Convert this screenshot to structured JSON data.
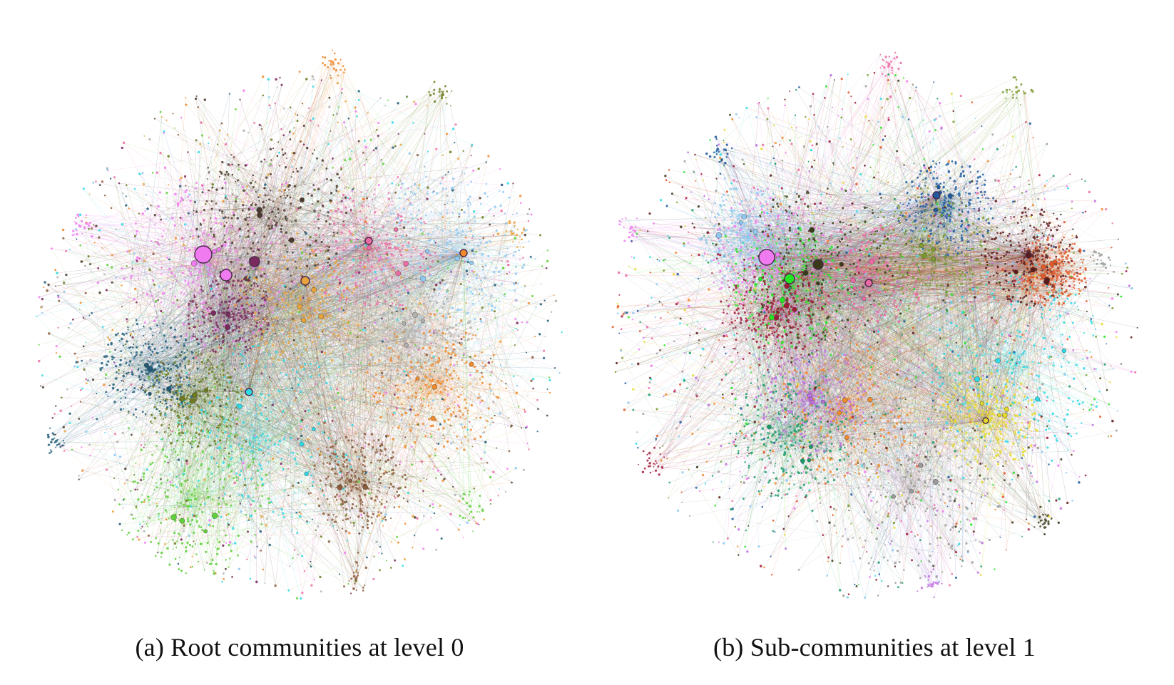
{
  "figure": {
    "panels": [
      {
        "id": "a",
        "caption": "(a) Root communities at level 0",
        "community_colors": [
          "#f07af0",
          "#ea6aa4",
          "#e8a33c",
          "#f08a2c",
          "#2fd9e6",
          "#5fcf3a",
          "#6d7a1e",
          "#7a2a5e",
          "#4b3a2e",
          "#1f5a78",
          "#8fc9f0",
          "#b0b0b0",
          "#8a5a3a"
        ],
        "hubs": [
          {
            "color": "#f07af0",
            "weight": 1.0
          },
          {
            "color": "#f07af0",
            "weight": 0.55
          },
          {
            "color": "#7a2a5e",
            "weight": 0.45
          },
          {
            "color": "#e8a33c",
            "weight": 0.35
          },
          {
            "color": "#ea6aa4",
            "weight": 0.3
          },
          {
            "color": "#f08a2c",
            "weight": 0.3
          },
          {
            "color": "#2fd9e6",
            "weight": 0.3
          }
        ]
      },
      {
        "id": "b",
        "caption": "(b) Sub-communities at level 1",
        "community_colors": [
          "#f07af0",
          "#22e622",
          "#3a3a1a",
          "#ea6aa4",
          "#2fd9e6",
          "#1f5a9e",
          "#7a9a2e",
          "#e6d82a",
          "#f08a2c",
          "#a01a3a",
          "#1a9a6a",
          "#5a1a1a",
          "#c070e0",
          "#8fc9f0",
          "#e05a2a",
          "#9a9a9a"
        ],
        "hubs": [
          {
            "color": "#f07af0",
            "weight": 0.9
          },
          {
            "color": "#22e622",
            "weight": 0.6
          },
          {
            "color": "#3a3a1a",
            "weight": 0.55
          },
          {
            "color": "#ea6aa4",
            "weight": 0.3
          },
          {
            "color": "#1f5a9e",
            "weight": 0.3
          },
          {
            "color": "#e6d82a",
            "weight": 0.3
          },
          {
            "color": "#5a1a1a",
            "weight": 0.28
          }
        ]
      }
    ]
  }
}
